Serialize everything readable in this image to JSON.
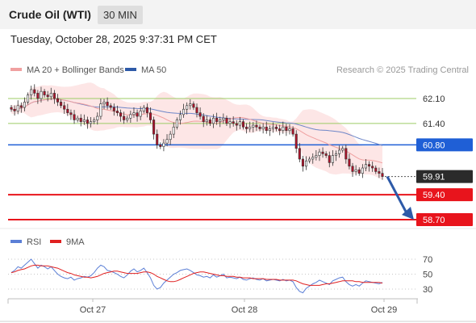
{
  "header": {
    "title": "Crude Oil (WTI)",
    "timeframe": "30 MIN",
    "datetime": "Tuesday, October 28, 2025 9:37:31 PM CET"
  },
  "colors": {
    "resistance": "#9ccc65",
    "pivot": "#1f5fd6",
    "support": "#e8141c",
    "current": "#2b2b2b",
    "ma20": "#f0a0a0",
    "bollinger_fill": "#fde2e2",
    "ma50": "#6e86c8",
    "rsi": "#5b7fd6",
    "rsi_ma": "#e02020",
    "arrow": "#2e5aa8",
    "candle": "#b0122a"
  },
  "chart_data": [
    {
      "type": "candlestick",
      "legend": [
        {
          "name": "MA 20 + Bollinger Bands",
          "color": "#f0a0a0"
        },
        {
          "name": "MA 50",
          "color": "#6e86c8"
        }
      ],
      "credit": "Research © 2025 Trading Central",
      "x_ticks": [
        "Oct 27",
        "Oct 28",
        "Oct 29"
      ],
      "ylim": [
        58.6,
        62.3
      ],
      "levels": [
        {
          "label": "62.10",
          "value": 62.1,
          "kind": "resistance"
        },
        {
          "label": "61.40",
          "value": 61.4,
          "kind": "resistance"
        },
        {
          "label": "60.80",
          "value": 60.8,
          "kind": "pivot"
        },
        {
          "label": "59.91",
          "value": 59.91,
          "kind": "current"
        },
        {
          "label": "59.40",
          "value": 59.4,
          "kind": "support"
        },
        {
          "label": "58.70",
          "value": 58.7,
          "kind": "support"
        }
      ],
      "arrow": {
        "from": 59.91,
        "to": 58.7,
        "direction": "down"
      },
      "closes": [
        61.8,
        61.75,
        61.9,
        61.85,
        62.0,
        62.2,
        62.35,
        62.25,
        62.1,
        62.3,
        62.2,
        62.15,
        62.25,
        62.1,
        62.0,
        61.9,
        61.8,
        61.7,
        61.65,
        61.5,
        61.55,
        61.45,
        61.5,
        61.4,
        61.45,
        61.5,
        61.6,
        61.95,
        62.0,
        61.9,
        61.85,
        61.75,
        61.7,
        61.6,
        61.5,
        61.55,
        61.65,
        61.7,
        61.6,
        61.75,
        61.85,
        61.7,
        61.5,
        61.1,
        60.8,
        60.75,
        60.85,
        60.95,
        61.1,
        61.3,
        61.5,
        61.65,
        61.8,
        61.9,
        61.95,
        61.85,
        61.7,
        61.6,
        61.45,
        61.5,
        61.4,
        61.55,
        61.45,
        61.5,
        61.55,
        61.4,
        61.45,
        61.4,
        61.35,
        61.45,
        61.3,
        61.25,
        61.3,
        61.35,
        61.3,
        61.25,
        61.3,
        61.2,
        61.25,
        61.3,
        61.25,
        61.2,
        61.3,
        61.2,
        61.25,
        61.1,
        60.7,
        60.4,
        60.2,
        60.35,
        60.4,
        60.45,
        60.5,
        60.6,
        60.55,
        60.5,
        60.3,
        60.5,
        60.55,
        60.65,
        60.7,
        60.4,
        60.2,
        60.05,
        60.1,
        60.0,
        60.15,
        60.25,
        60.2,
        60.15,
        60.05,
        60.0,
        59.91
      ]
    },
    {
      "type": "line",
      "legend": [
        {
          "name": "RSI",
          "color": "#5b7fd6"
        },
        {
          "name": "9MA",
          "color": "#e02020"
        }
      ],
      "yticks": [
        70,
        50,
        30
      ],
      "ylim": [
        20,
        80
      ],
      "rsi": [
        52,
        55,
        60,
        58,
        62,
        66,
        70,
        64,
        58,
        62,
        60,
        57,
        60,
        55,
        50,
        47,
        45,
        44,
        46,
        42,
        44,
        45,
        47,
        46,
        48,
        52,
        58,
        62,
        60,
        55,
        54,
        52,
        50,
        47,
        45,
        49,
        54,
        57,
        53,
        55,
        58,
        52,
        45,
        35,
        30,
        32,
        38,
        42,
        46,
        50,
        52,
        55,
        56,
        57,
        55,
        52,
        49,
        48,
        46,
        47,
        45,
        49,
        46,
        48,
        50,
        45,
        46,
        45,
        44,
        46,
        43,
        42,
        44,
        45,
        43,
        42,
        44,
        41,
        42,
        43,
        42,
        41,
        43,
        41,
        42,
        40,
        32,
        27,
        25,
        31,
        34,
        37,
        39,
        42,
        40,
        38,
        36,
        41,
        43,
        45,
        46,
        40,
        36,
        34,
        36,
        34,
        38,
        41,
        40,
        39,
        38,
        37,
        39
      ],
      "rsi_ma": [
        52,
        53,
        55,
        56,
        57,
        59,
        61,
        62,
        62,
        61,
        61,
        61,
        60,
        59,
        58,
        56,
        54,
        52,
        51,
        49,
        48,
        47,
        46,
        46,
        45,
        46,
        47,
        49,
        51,
        52,
        53,
        54,
        54,
        53,
        52,
        51,
        51,
        51,
        51,
        52,
        53,
        53,
        52,
        50,
        47,
        45,
        43,
        41,
        40,
        40,
        41,
        43,
        45,
        47,
        49,
        51,
        52,
        53,
        53,
        52,
        51,
        50,
        49,
        48,
        48,
        47,
        47,
        47,
        46,
        46,
        45,
        45,
        45,
        44,
        44,
        44,
        44,
        43,
        43,
        43,
        43,
        42,
        42,
        42,
        42,
        42,
        41,
        39,
        37,
        36,
        35,
        35,
        35,
        35,
        36,
        37,
        37,
        38,
        39,
        40,
        41,
        41,
        41,
        41,
        40,
        40,
        39,
        39,
        39,
        39,
        39,
        39,
        38
      ]
    }
  ]
}
